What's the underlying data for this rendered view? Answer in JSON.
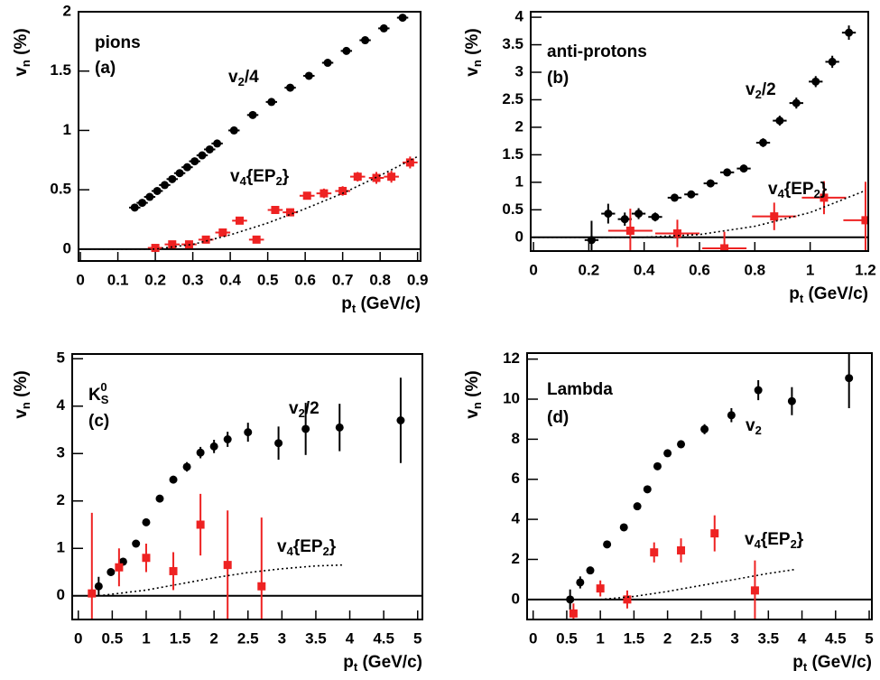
{
  "chart_data": [
    {
      "type": "scatter",
      "xlim": [
        -0.005,
        0.908
      ],
      "ylim": [
        -0.1,
        2.0
      ],
      "xticks": [
        0,
        0.1,
        0.2,
        0.3,
        0.4,
        0.5,
        0.6,
        0.7,
        0.8,
        0.9
      ],
      "yticks": [
        0,
        0.5,
        1,
        1.5,
        2
      ],
      "hline": 0,
      "x_title": {
        "parts": [
          {
            "text": "p"
          },
          {
            "text": "t",
            "sub": true
          },
          {
            "text": " (GeV/c)"
          }
        ]
      },
      "y_title": {
        "parts": [
          {
            "text": "v"
          },
          {
            "text": "n",
            "sub": true
          },
          {
            "text": " (%)"
          }
        ]
      },
      "annotations": [
        {
          "parts": [
            {
              "text": "pions"
            }
          ],
          "color": "#000000"
        },
        {
          "parts": [
            {
              "text": "(a)"
            }
          ],
          "color": "#000000"
        },
        {
          "parts": [
            {
              "text": "v"
            },
            {
              "text": "2",
              "sub": true
            },
            {
              "text": "/4"
            }
          ],
          "color": "#000000"
        },
        {
          "parts": [
            {
              "text": "v"
            },
            {
              "text": "4",
              "sub": true
            },
            {
              "text": "{EP"
            },
            {
              "text": "2",
              "sub": true
            },
            {
              "text": "}"
            }
          ],
          "color": "#ee2222"
        }
      ],
      "series": [
        {
          "marker": "circle",
          "color": "#000000",
          "x": [
            0.145,
            0.165,
            0.185,
            0.205,
            0.225,
            0.245,
            0.265,
            0.285,
            0.305,
            0.325,
            0.345,
            0.365,
            0.41,
            0.46,
            0.51,
            0.56,
            0.61,
            0.66,
            0.71,
            0.76,
            0.81,
            0.86
          ],
          "values": [
            0.35,
            0.39,
            0.44,
            0.49,
            0.54,
            0.59,
            0.64,
            0.69,
            0.74,
            0.79,
            0.84,
            0.89,
            1.0,
            1.13,
            1.24,
            1.36,
            1.46,
            1.57,
            1.67,
            1.76,
            1.86,
            1.95
          ],
          "errors": [
            0.01,
            0.01,
            0.01,
            0.01,
            0.01,
            0.01,
            0.01,
            0.01,
            0.01,
            0.01,
            0.01,
            0.01,
            0.01,
            0.01,
            0.01,
            0.01,
            0.01,
            0.01,
            0.01,
            0.01,
            0.01,
            0.01
          ],
          "xerr": 0.015
        },
        {
          "marker": "square",
          "color": "#ee2222",
          "x": [
            0.2,
            0.245,
            0.29,
            0.335,
            0.38,
            0.425,
            0.47,
            0.52,
            0.56,
            0.605,
            0.65,
            0.7,
            0.74,
            0.79,
            0.83,
            0.88
          ],
          "values": [
            0.01,
            0.04,
            0.04,
            0.08,
            0.14,
            0.24,
            0.08,
            0.33,
            0.31,
            0.45,
            0.47,
            0.49,
            0.61,
            0.6,
            0.61,
            0.73
          ],
          "errors": [
            0.03,
            0.03,
            0.03,
            0.03,
            0.03,
            0.03,
            0.03,
            0.03,
            0.03,
            0.03,
            0.04,
            0.04,
            0.04,
            0.05,
            0.05,
            0.05
          ],
          "xerr": 0.02
        },
        {
          "line": "dotted",
          "color": "#000000",
          "x": [
            0,
            0.1,
            0.2,
            0.3,
            0.4,
            0.5,
            0.6,
            0.7,
            0.8,
            0.9
          ],
          "values": [
            0,
            0,
            0,
            0.04,
            0.12,
            0.22,
            0.34,
            0.47,
            0.62,
            0.78
          ]
        }
      ]
    },
    {
      "type": "scatter",
      "xlim": [
        -0.01,
        1.21
      ],
      "ylim": [
        -0.25,
        4.1
      ],
      "xticks": [
        0,
        0.2,
        0.4,
        0.6,
        0.8,
        1,
        1.2
      ],
      "yticks": [
        0,
        0.5,
        1,
        1.5,
        2,
        2.5,
        3,
        3.5,
        4
      ],
      "hline": 0,
      "x_title": {
        "parts": [
          {
            "text": "p"
          },
          {
            "text": "t",
            "sub": true
          },
          {
            "text": " (GeV/c)"
          }
        ]
      },
      "y_title": {
        "parts": [
          {
            "text": "v"
          },
          {
            "text": "n",
            "sub": true
          },
          {
            "text": " (%)"
          }
        ]
      },
      "annotations": [
        {
          "parts": [
            {
              "text": "anti-protons"
            }
          ],
          "color": "#000000"
        },
        {
          "parts": [
            {
              "text": "(b)"
            }
          ],
          "color": "#000000"
        },
        {
          "parts": [
            {
              "text": "v"
            },
            {
              "text": "2",
              "sub": true
            },
            {
              "text": "/2"
            }
          ],
          "color": "#000000"
        },
        {
          "parts": [
            {
              "text": "v"
            },
            {
              "text": "4",
              "sub": true
            },
            {
              "text": "{EP"
            },
            {
              "text": "2",
              "sub": true
            },
            {
              "text": "}"
            }
          ],
          "color": "#ee2222"
        }
      ],
      "series": [
        {
          "marker": "circle",
          "color": "#000000",
          "x": [
            0.21,
            0.27,
            0.33,
            0.38,
            0.44,
            0.51,
            0.57,
            0.64,
            0.7,
            0.76,
            0.83,
            0.89,
            0.95,
            1.02,
            1.08,
            1.14
          ],
          "values": [
            -0.05,
            0.43,
            0.33,
            0.43,
            0.37,
            0.72,
            0.78,
            0.98,
            1.18,
            1.25,
            1.72,
            2.12,
            2.44,
            2.83,
            3.19,
            3.72
          ],
          "errors": [
            0.35,
            0.18,
            0.12,
            0.1,
            0.08,
            0.07,
            0.07,
            0.07,
            0.07,
            0.07,
            0.08,
            0.09,
            0.1,
            0.1,
            0.11,
            0.13
          ],
          "xerr": 0.025
        },
        {
          "marker": "square",
          "color": "#ee2222",
          "x": [
            0.35,
            0.52,
            0.69,
            0.87,
            1.05,
            1.2
          ],
          "values": [
            0.12,
            0.07,
            -0.2,
            0.38,
            0.72,
            0.31
          ],
          "errors": [
            0.4,
            0.25,
            0.3,
            0.25,
            0.3,
            0.7
          ],
          "xerr": 0.08
        },
        {
          "line": "dotted",
          "color": "#000000",
          "x": [
            0,
            0.4,
            0.6,
            0.8,
            1.0,
            1.2
          ],
          "values": [
            0,
            0,
            0.05,
            0.2,
            0.45,
            0.85
          ]
        }
      ]
    },
    {
      "type": "scatter",
      "xlim": [
        -0.09,
        5.07
      ],
      "ylim": [
        -0.5,
        5.1
      ],
      "xticks": [
        0,
        0.5,
        1,
        1.5,
        2,
        2.5,
        3,
        3.5,
        4,
        4.5,
        5
      ],
      "yticks": [
        0,
        1,
        2,
        3,
        4,
        5
      ],
      "hline": 0,
      "x_title": {
        "parts": [
          {
            "text": "p"
          },
          {
            "text": "t",
            "sub": true
          },
          {
            "text": " (GeV/c)"
          }
        ]
      },
      "y_title": {
        "parts": [
          {
            "text": "v"
          },
          {
            "text": "n",
            "sub": true
          },
          {
            "text": " (%)"
          }
        ]
      },
      "annotations": [
        {
          "parts": [
            {
              "text": "K"
            },
            {
              "text": "S",
              "sub": true
            },
            {
              "text": "0",
              "sup": true
            }
          ],
          "color": "#000000"
        },
        {
          "parts": [
            {
              "text": "(c)"
            }
          ],
          "color": "#000000"
        },
        {
          "parts": [
            {
              "text": "v"
            },
            {
              "text": "2",
              "sub": true
            },
            {
              "text": "/2"
            }
          ],
          "color": "#000000"
        },
        {
          "parts": [
            {
              "text": "v"
            },
            {
              "text": "4",
              "sub": true
            },
            {
              "text": "{EP"
            },
            {
              "text": "2",
              "sub": true
            },
            {
              "text": "}"
            }
          ],
          "color": "#ee2222"
        }
      ],
      "series": [
        {
          "marker": "circle",
          "color": "#000000",
          "x": [
            0.3,
            0.48,
            0.66,
            0.85,
            1.0,
            1.2,
            1.4,
            1.6,
            1.8,
            2.0,
            2.2,
            2.5,
            2.95,
            3.35,
            3.85,
            4.75
          ],
          "values": [
            0.2,
            0.5,
            0.72,
            1.1,
            1.55,
            2.05,
            2.45,
            2.72,
            3.02,
            3.15,
            3.3,
            3.45,
            3.22,
            3.52,
            3.55,
            3.7
          ],
          "errors": [
            0.2,
            0.08,
            0.08,
            0.06,
            0.06,
            0.06,
            0.08,
            0.1,
            0.12,
            0.14,
            0.16,
            0.2,
            0.35,
            0.55,
            0.5,
            0.9
          ]
        },
        {
          "marker": "square",
          "color": "#ee2222",
          "x": [
            0.2,
            0.6,
            1.0,
            1.4,
            1.8,
            2.2,
            2.7
          ],
          "values": [
            0.05,
            0.6,
            0.8,
            0.52,
            1.5,
            0.65,
            0.2
          ],
          "errors": [
            1.7,
            0.4,
            0.3,
            0.4,
            0.65,
            1.15,
            1.45
          ]
        },
        {
          "line": "dotted",
          "color": "#000000",
          "x": [
            0.3,
            1,
            1.5,
            2,
            2.5,
            3,
            3.5,
            3.9
          ],
          "values": [
            0,
            0.12,
            0.25,
            0.38,
            0.49,
            0.57,
            0.63,
            0.65
          ]
        }
      ]
    },
    {
      "type": "scatter",
      "xlim": [
        -0.09,
        5.04
      ],
      "ylim": [
        -1,
        12.3
      ],
      "xticks": [
        0,
        0.5,
        1,
        1.5,
        2,
        2.5,
        3,
        3.5,
        4,
        4.5,
        5
      ],
      "yticks": [
        0,
        2,
        4,
        6,
        8,
        10,
        12
      ],
      "hline": 0,
      "x_title": {
        "parts": [
          {
            "text": "p"
          },
          {
            "text": "t",
            "sub": true
          },
          {
            "text": " (GeV/c)"
          }
        ]
      },
      "y_title": {
        "parts": [
          {
            "text": "v"
          },
          {
            "text": "n",
            "sub": true
          },
          {
            "text": " (%)"
          }
        ]
      },
      "annotations": [
        {
          "parts": [
            {
              "text": "Lambda"
            }
          ],
          "color": "#000000"
        },
        {
          "parts": [
            {
              "text": "(d)"
            }
          ],
          "color": "#000000"
        },
        {
          "parts": [
            {
              "text": "v"
            },
            {
              "text": "2",
              "sub": true
            }
          ],
          "color": "#000000"
        },
        {
          "parts": [
            {
              "text": "v"
            },
            {
              "text": "4",
              "sub": true
            },
            {
              "text": "{EP"
            },
            {
              "text": "2",
              "sub": true
            },
            {
              "text": "}"
            }
          ],
          "color": "#ee2222"
        }
      ],
      "series": [
        {
          "marker": "circle",
          "color": "#000000",
          "x": [
            0.55,
            0.7,
            0.85,
            1.1,
            1.35,
            1.55,
            1.7,
            1.85,
            2.0,
            2.2,
            2.55,
            2.95,
            3.35,
            3.85,
            4.7
          ],
          "values": [
            0,
            0.85,
            1.45,
            2.75,
            3.6,
            4.65,
            5.5,
            6.65,
            7.3,
            7.75,
            8.5,
            9.2,
            10.45,
            9.9,
            11.05
          ],
          "errors": [
            0.5,
            0.3,
            0.15,
            0.12,
            0.12,
            0.12,
            0.13,
            0.15,
            0.18,
            0.2,
            0.25,
            0.35,
            0.5,
            0.7,
            1.5
          ]
        },
        {
          "marker": "square",
          "color": "#ee2222",
          "x": [
            0.6,
            1.0,
            1.4,
            1.8,
            2.2,
            2.7,
            3.3
          ],
          "values": [
            -0.7,
            0.55,
            0,
            2.35,
            2.45,
            3.3,
            0.45
          ],
          "errors": [
            0.5,
            0.4,
            0.45,
            0.5,
            0.6,
            0.9,
            1.5
          ]
        },
        {
          "line": "dotted",
          "color": "#000000",
          "x": [
            1,
            1.5,
            2,
            2.5,
            3,
            3.5,
            3.9
          ],
          "values": [
            0,
            0.15,
            0.4,
            0.7,
            1.0,
            1.3,
            1.5
          ]
        }
      ]
    }
  ]
}
